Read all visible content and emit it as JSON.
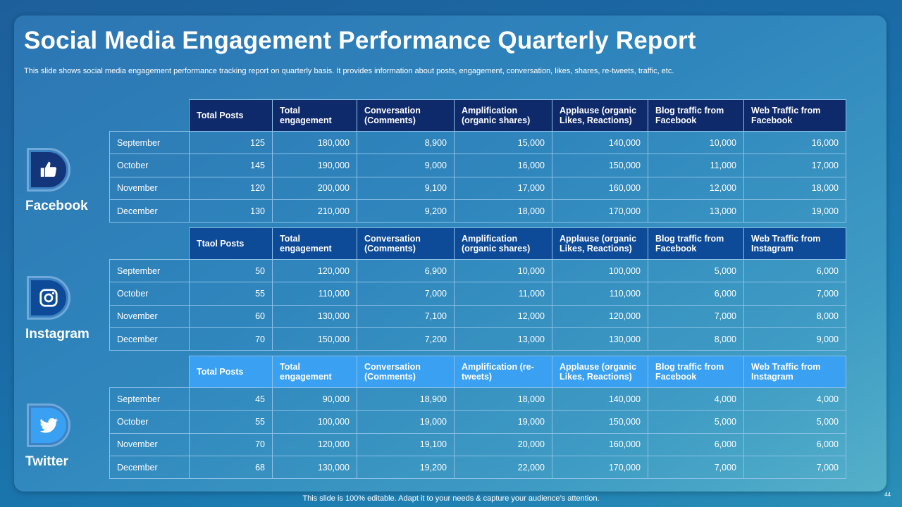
{
  "title": "Social Media Engagement Performance Quarterly Report",
  "subtitle": "This slide shows social media engagement performance tracking report on quarterly basis. It provides information about posts, engagement, conversation, likes, shares, re-tweets, traffic, etc.",
  "footer": "This slide is 100% editable. Adapt it to your needs & capture your audience’s attention.",
  "page_number": "44",
  "platforms": {
    "facebook": {
      "name": "Facebook",
      "icon": "thumbs-up-icon",
      "headers": [
        "Total Posts",
        "Total engagement",
        "Conversation (Comments)",
        "Amplification (organic shares)",
        "Applause (organic Likes, Reactions)",
        "Blog traffic from Facebook",
        "Web Traffic from Facebook"
      ],
      "rows": [
        [
          "September",
          "125",
          "180,000",
          "8,900",
          "15,000",
          "140,000",
          "10,000",
          "16,000"
        ],
        [
          "October",
          "145",
          "190,000",
          "9,000",
          "16,000",
          "150,000",
          "11,000",
          "17,000"
        ],
        [
          "November",
          "120",
          "200,000",
          "9,100",
          "17,000",
          "160,000",
          "12,000",
          "18,000"
        ],
        [
          "December",
          "130",
          "210,000",
          "9,200",
          "18,000",
          "170,000",
          "13,000",
          "19,000"
        ]
      ]
    },
    "instagram": {
      "name": "Instagram",
      "icon": "instagram-icon",
      "headers": [
        "Ttaol Posts",
        "Total engagement",
        "Conversation (Comments)",
        "Amplification (organic shares)",
        "Applause (organic Likes, Reactions)",
        "Blog traffic from Facebook",
        "Web Traffic from Instagram"
      ],
      "rows": [
        [
          "September",
          "50",
          "120,000",
          "6,900",
          "10,000",
          "100,000",
          "5,000",
          "6,000"
        ],
        [
          "October",
          "55",
          "110,000",
          "7,000",
          "11,000",
          "110,000",
          "6,000",
          "7,000"
        ],
        [
          "November",
          "60",
          "130,000",
          "7,100",
          "12,000",
          "120,000",
          "7,000",
          "8,000"
        ],
        [
          "December",
          "70",
          "150,000",
          "7,200",
          "13,000",
          "130,000",
          "8,000",
          "9,000"
        ]
      ]
    },
    "twitter": {
      "name": "Twitter",
      "icon": "twitter-bird-icon",
      "headers": [
        "Total Posts",
        "Total engagement",
        "Conversation (Comments)",
        "Amplification (re-tweets)",
        "Applause (organic Likes, Reactions)",
        "Blog traffic from Facebook",
        "Web Traffic from Instagram"
      ],
      "rows": [
        [
          "September",
          "45",
          "90,000",
          "18,900",
          "18,000",
          "140,000",
          "4,000",
          "4,000"
        ],
        [
          "October",
          "55",
          "100,000",
          "19,000",
          "19,000",
          "150,000",
          "5,000",
          "5,000"
        ],
        [
          "November",
          "70",
          "120,000",
          "19,100",
          "20,000",
          "160,000",
          "6,000",
          "6,000"
        ],
        [
          "December",
          "68",
          "130,000",
          "19,200",
          "22,000",
          "170,000",
          "7,000",
          "7,000"
        ]
      ]
    }
  },
  "colors": {
    "facebook_header": "#0f2a6b",
    "instagram_header": "#0d4a97",
    "twitter_header": "#3aa0f2"
  }
}
